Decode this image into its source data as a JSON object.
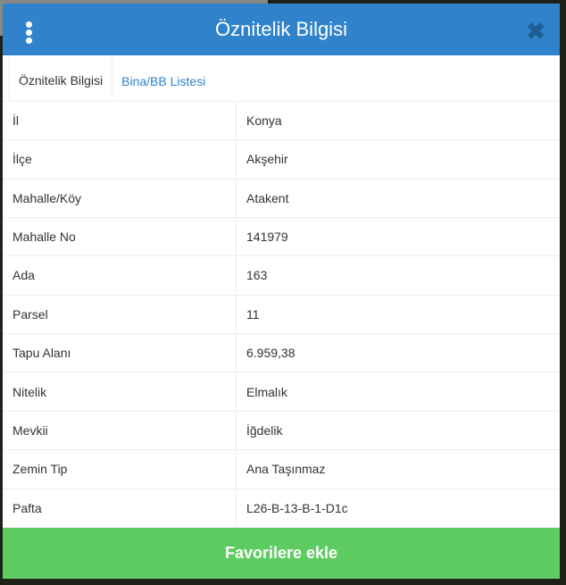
{
  "header": {
    "title": "Öznitelik Bilgisi",
    "menu_icon": "vertical-dots-icon",
    "close_icon": "close-icon"
  },
  "tabs": [
    {
      "label": "Öznitelik Bilgisi",
      "active": true
    },
    {
      "label": "Bina/BB Listesi",
      "active": false
    }
  ],
  "rows": [
    {
      "key": "İl",
      "value": "Konya"
    },
    {
      "key": "İlçe",
      "value": "Akşehir"
    },
    {
      "key": "Mahalle/Köy",
      "value": "Atakent"
    },
    {
      "key": "Mahalle No",
      "value": "141979"
    },
    {
      "key": "Ada",
      "value": "163"
    },
    {
      "key": "Parsel",
      "value": "11"
    },
    {
      "key": "Tapu Alanı",
      "value": "6.959,38"
    },
    {
      "key": "Nitelik",
      "value": "Elmalık"
    },
    {
      "key": "Mevkii",
      "value": "İğdelik"
    },
    {
      "key": "Zemin Tip",
      "value": "Ana Taşınmaz"
    },
    {
      "key": "Pafta",
      "value": "L26-B-13-B-1-D1c"
    }
  ],
  "footer": {
    "button_label": "Favorilere ekle"
  },
  "colors": {
    "header": "#3083cb",
    "button": "#5fcb63"
  }
}
